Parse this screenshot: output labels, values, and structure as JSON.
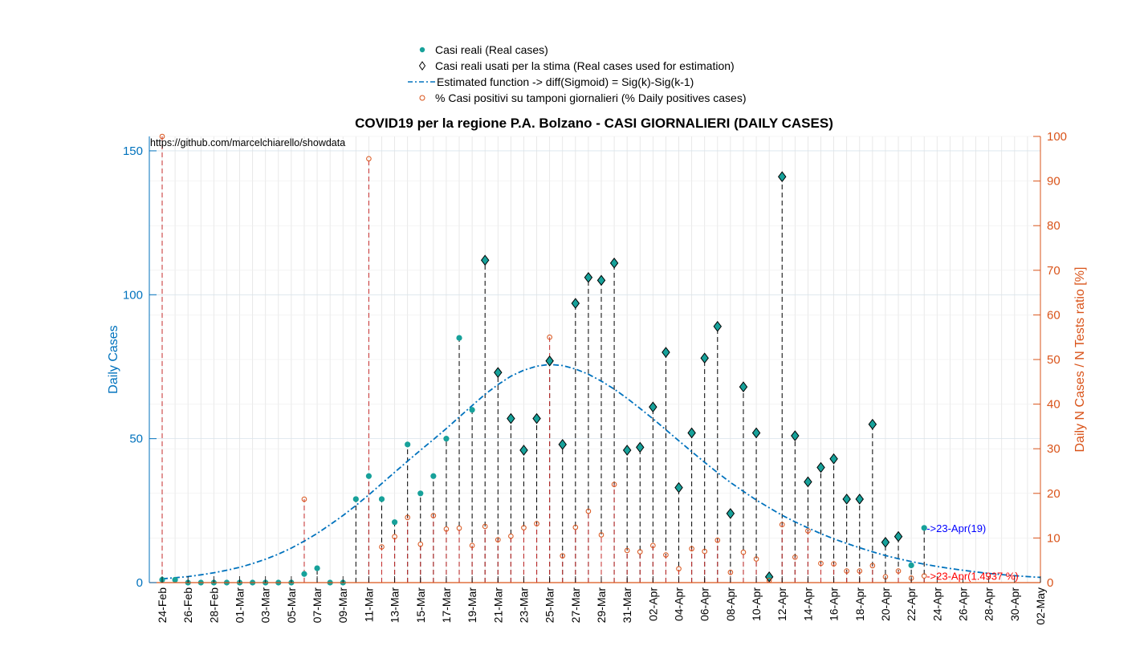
{
  "legend": {
    "items": [
      {
        "label": "Casi reali (Real cases)",
        "marker": "filled-circle",
        "color": "#17a19a"
      },
      {
        "label": "Casi reali usati per la stima (Real cases used for estimation)",
        "marker": "diamond",
        "color": "#000000"
      },
      {
        "label": "Estimated function -> diff(Sigmoid) = Sig(k)-Sig(k-1)",
        "marker": "dashdot-line",
        "color": "#0072bd"
      },
      {
        "label": "% Casi positivi su tamponi giornalieri (% Daily positives cases)",
        "marker": "open-circle",
        "color": "#d95319"
      }
    ]
  },
  "chart_data": {
    "type": "scatter",
    "title": "COVID19 per la regione P.A. Bolzano - CASI GIORNALIERI (DAILY CASES)",
    "source_text": "https://github.com/marcelchiarello/showdata",
    "ylabel_left": "Daily Cases",
    "ylabel_right": "Daily N Cases / N Tests ratio [%]",
    "ylim_left": [
      0,
      155
    ],
    "ylim_right": [
      0,
      100
    ],
    "yticks_left": [
      "0",
      "50",
      "100",
      "150"
    ],
    "yticks_right": [
      "0",
      "10",
      "20",
      "30",
      "40",
      "50",
      "60",
      "70",
      "80",
      "90",
      "100"
    ],
    "grid": true,
    "legend_position": "top-center",
    "colors": {
      "left_axis": "#0072bd",
      "right_axis": "#d95319",
      "real_cases": "#17a19a",
      "estimated": "#0072bd",
      "ratio": "#d95319",
      "dates_separator": "#000000"
    },
    "x_dates": [
      "24-Feb",
      "25-Feb",
      "26-Feb",
      "27-Feb",
      "28-Feb",
      "29-Feb",
      "01-Mar",
      "02-Mar",
      "03-Mar",
      "04-Mar",
      "05-Mar",
      "06-Mar",
      "07-Mar",
      "08-Mar",
      "09-Mar",
      "10-Mar",
      "11-Mar",
      "12-Mar",
      "13-Mar",
      "14-Mar",
      "15-Mar",
      "16-Mar",
      "17-Mar",
      "18-Mar",
      "19-Mar",
      "20-Mar",
      "21-Mar",
      "22-Mar",
      "23-Mar",
      "24-Mar",
      "25-Mar",
      "26-Mar",
      "27-Mar",
      "28-Mar",
      "29-Mar",
      "30-Mar",
      "31-Mar",
      "01-Apr",
      "02-Apr",
      "03-Apr",
      "04-Apr",
      "05-Apr",
      "06-Apr",
      "07-Apr",
      "08-Apr",
      "09-Apr",
      "10-Apr",
      "11-Apr",
      "12-Apr",
      "13-Apr",
      "14-Apr",
      "15-Apr",
      "16-Apr",
      "17-Apr",
      "18-Apr",
      "19-Apr",
      "20-Apr",
      "21-Apr",
      "22-Apr",
      "23-Apr",
      "24-Apr",
      "25-Apr",
      "26-Apr",
      "27-Apr",
      "28-Apr",
      "29-Apr",
      "30-Apr",
      "01-May",
      "02-May"
    ],
    "x_tick_labels": [
      "24-Feb",
      "26-Feb",
      "28-Feb",
      "01-Mar",
      "03-Mar",
      "05-Mar",
      "07-Mar",
      "09-Mar",
      "11-Mar",
      "13-Mar",
      "15-Mar",
      "17-Mar",
      "19-Mar",
      "21-Mar",
      "23-Mar",
      "25-Mar",
      "27-Mar",
      "29-Mar",
      "31-Mar",
      "02-Apr",
      "04-Apr",
      "06-Apr",
      "08-Apr",
      "10-Apr",
      "12-Apr",
      "14-Apr",
      "16-Apr",
      "18-Apr",
      "20-Apr",
      "22-Apr",
      "24-Apr",
      "26-Apr",
      "28-Apr",
      "30-Apr",
      "02-May"
    ],
    "real_cases": [
      1,
      1,
      0,
      0,
      0,
      0,
      0,
      0,
      0,
      0,
      0,
      3,
      5,
      0,
      0,
      29,
      37,
      29,
      21,
      48,
      31,
      37,
      50,
      85,
      60,
      112,
      73,
      57,
      46,
      57,
      77,
      48,
      97,
      106,
      105,
      111,
      46,
      47,
      61,
      80,
      33,
      52,
      78,
      89,
      24,
      68,
      52,
      2,
      141,
      51,
      35,
      40,
      43,
      29,
      29,
      55,
      14,
      16,
      6,
      19
    ],
    "used_for_estimation": [
      false,
      false,
      false,
      false,
      false,
      false,
      false,
      false,
      false,
      false,
      false,
      false,
      false,
      false,
      false,
      false,
      false,
      false,
      false,
      false,
      false,
      false,
      false,
      false,
      false,
      true,
      true,
      true,
      true,
      true,
      true,
      true,
      true,
      true,
      true,
      true,
      true,
      true,
      true,
      true,
      true,
      true,
      true,
      true,
      true,
      true,
      true,
      true,
      true,
      true,
      true,
      true,
      true,
      true,
      true,
      true,
      true,
      true,
      false,
      false
    ],
    "positive_ratio_pct": [
      100,
      null,
      null,
      null,
      null,
      null,
      null,
      null,
      null,
      null,
      null,
      18.7,
      null,
      null,
      null,
      null,
      95,
      8,
      10.3,
      14.6,
      8.6,
      15,
      12,
      12.2,
      8.3,
      12.6,
      9.6,
      10.4,
      12.3,
      13.2,
      55,
      6,
      12.4,
      16,
      10.7,
      22,
      7.2,
      6.9,
      8.3,
      6.2,
      3.1,
      7.6,
      7,
      9.5,
      2.3,
      6.8,
      5.3,
      0.5,
      13,
      5.7,
      11.6,
      4.3,
      4.2,
      2.6,
      2.6,
      3.8,
      1.3,
      2.6,
      1,
      1.4937
    ],
    "estimated_function": [
      1.3,
      1.7,
      2.1,
      2.7,
      3.4,
      4.3,
      5.3,
      6.6,
      8.1,
      9.9,
      12.0,
      14.4,
      17.1,
      20.1,
      23.3,
      26.8,
      30.5,
      34.4,
      38.3,
      42.2,
      46.0,
      49.7,
      53.5,
      57.5,
      61.5,
      65.4,
      68.8,
      71.7,
      73.8,
      75.2,
      75.8,
      75.4,
      74.2,
      72.4,
      70.0,
      67.2,
      64.0,
      60.5,
      56.9,
      53.1,
      49.3,
      45.5,
      41.8,
      38.2,
      34.8,
      31.7,
      28.7,
      26.0,
      23.4,
      21.1,
      19.0,
      17.0,
      15.2,
      13.6,
      12.1,
      10.7,
      9.4,
      8.3,
      7.3,
      6.4,
      5.6,
      4.9,
      4.3,
      3.7,
      3.2,
      2.8,
      2.4,
      2.1,
      1.8
    ],
    "annotations": [
      {
        "text": "->23-Apr(19)",
        "color": "#0000ff"
      },
      {
        "text": "->23-Apr(1.4937 %)",
        "color": "#ff0000"
      }
    ]
  }
}
